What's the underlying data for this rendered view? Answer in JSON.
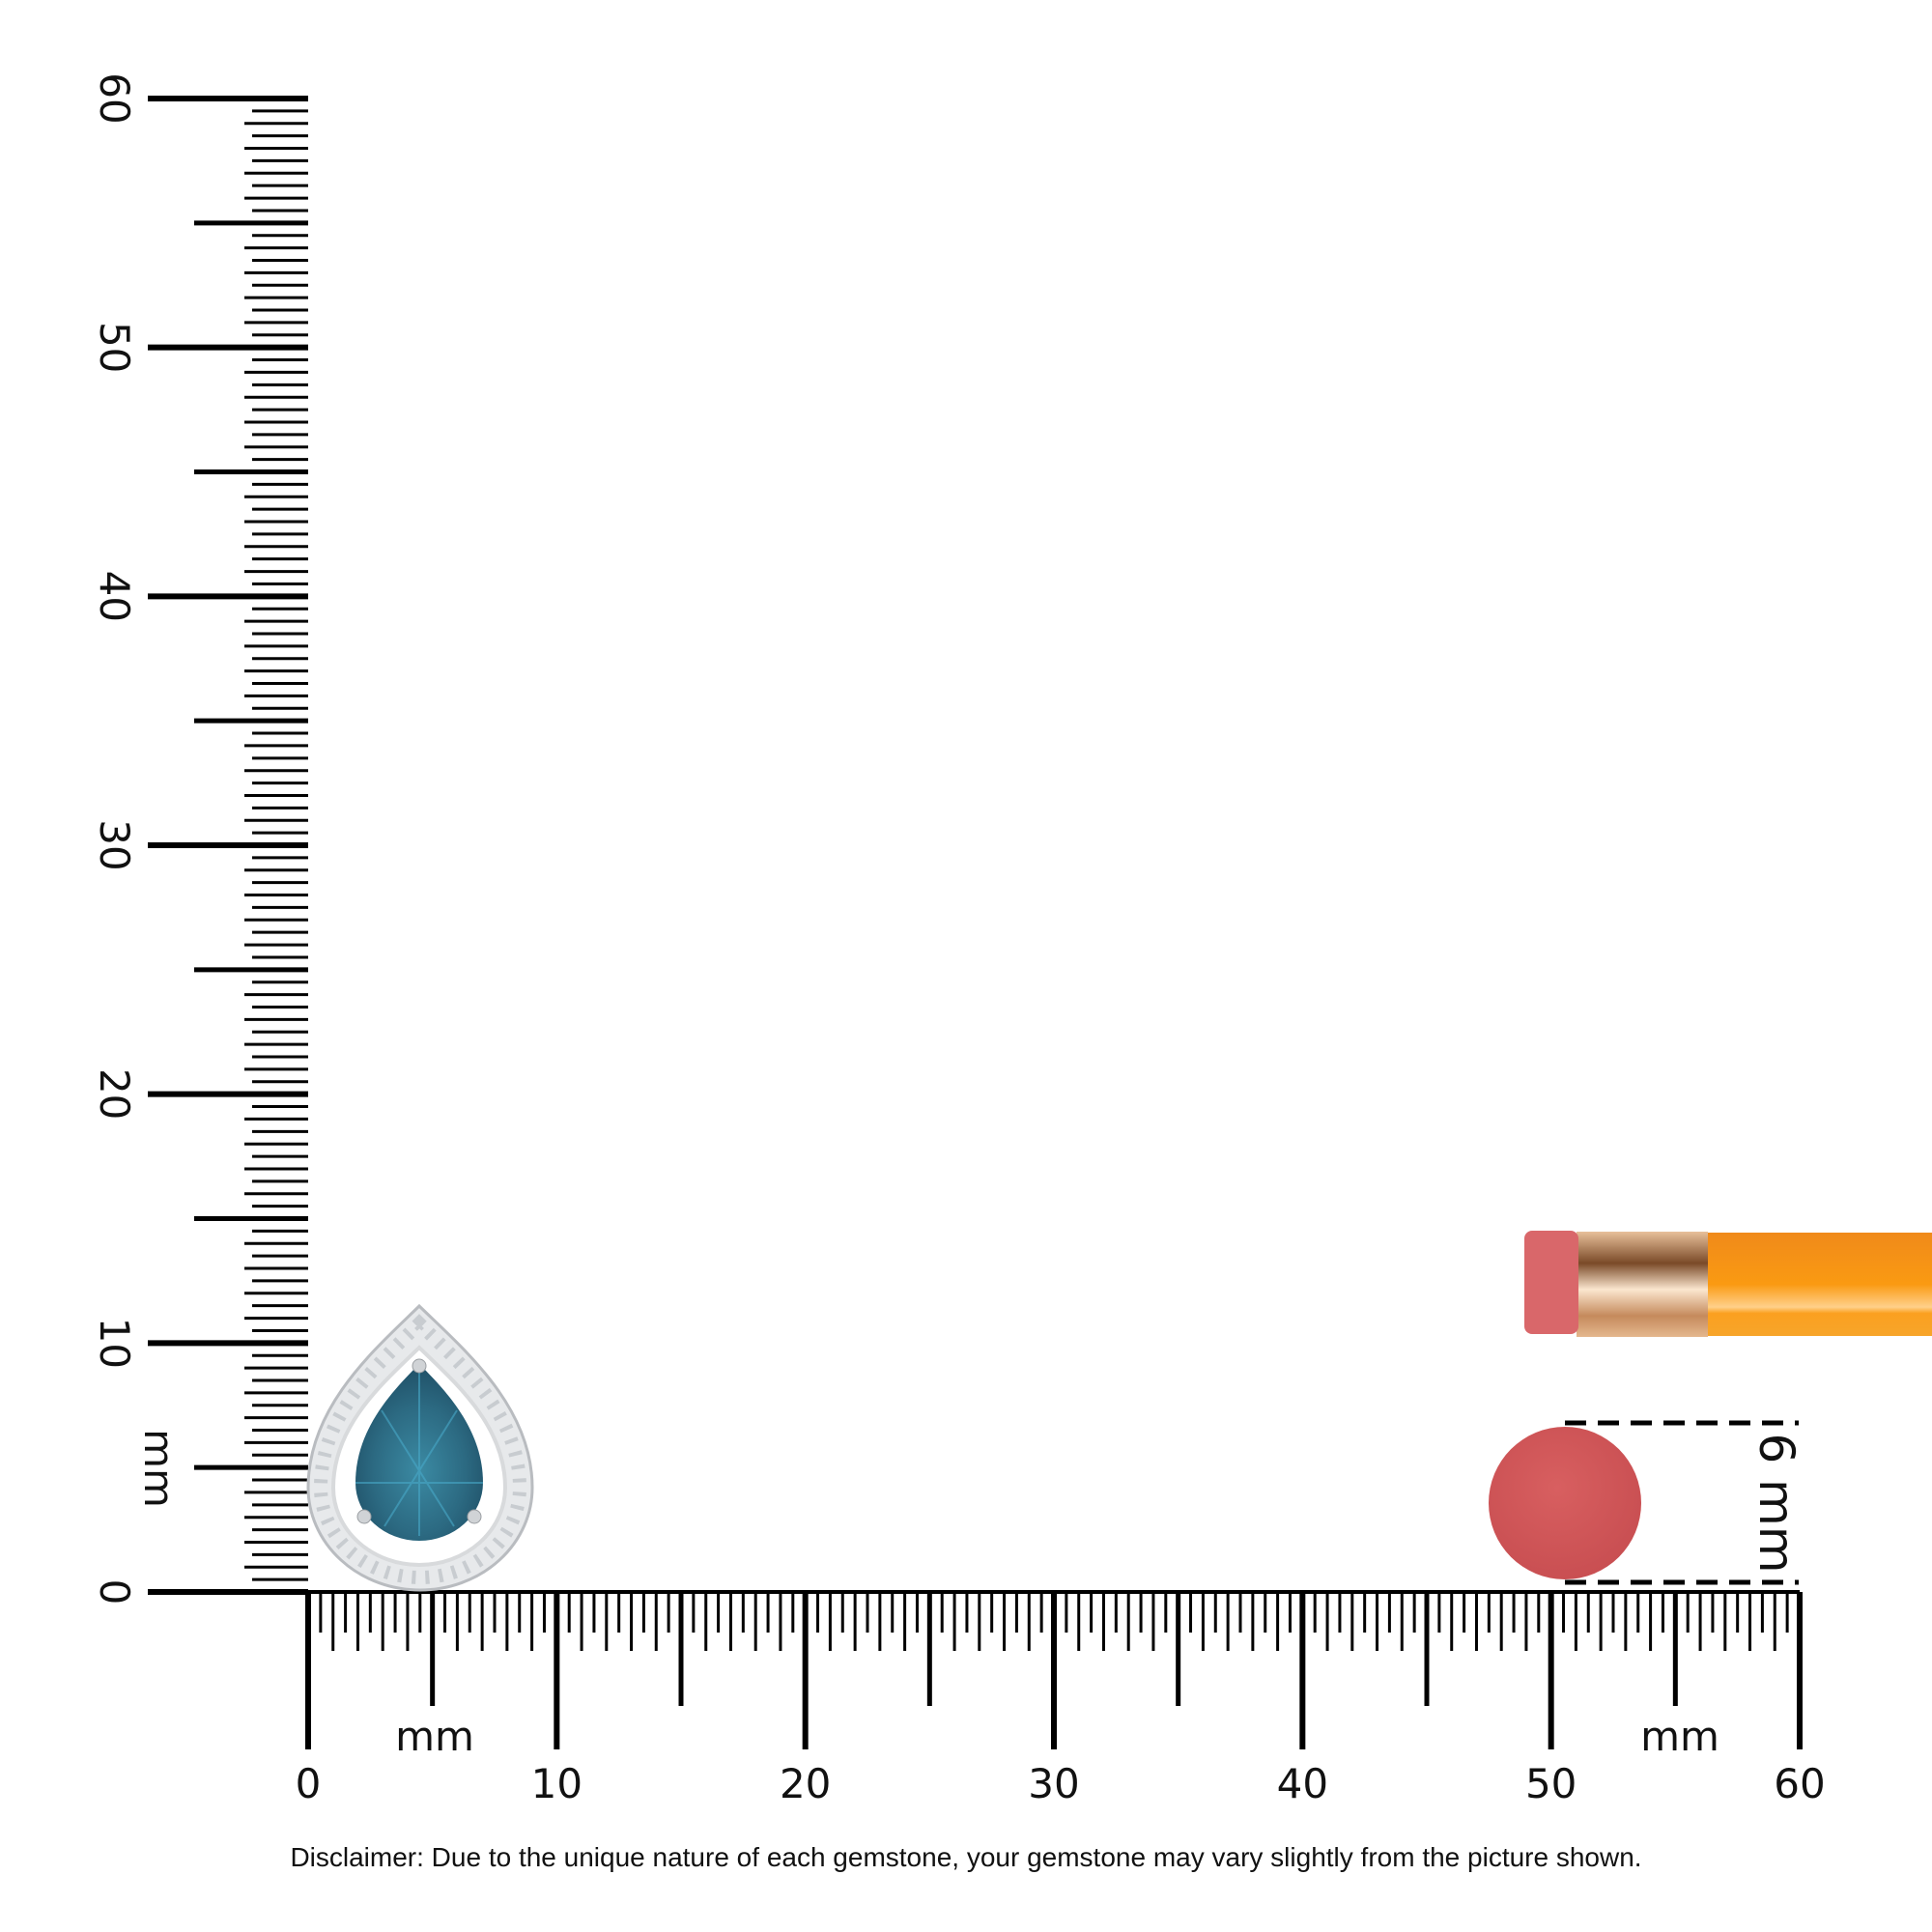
{
  "ruler": {
    "unit_label": "mm",
    "max_mm": 60,
    "major_labels": [
      "0",
      "10",
      "20",
      "30",
      "40",
      "50",
      "60"
    ],
    "color": "#000000"
  },
  "reference": {
    "eraser_size_label": "6 mm",
    "eraser_color": "#d35a5c",
    "pencil_body_color": "#f7931e",
    "ferrule_color": "#d9a57a"
  },
  "gemstone": {
    "shape": "pear",
    "center_stone_color": "#2f6f86",
    "halo_color": "#e6e8ea",
    "approx_size_mm": {
      "width": 9,
      "height": 11.5
    }
  },
  "disclaimer": "Disclaimer: Due to the unique nature of each gemstone, your gemstone may vary slightly from the picture shown."
}
